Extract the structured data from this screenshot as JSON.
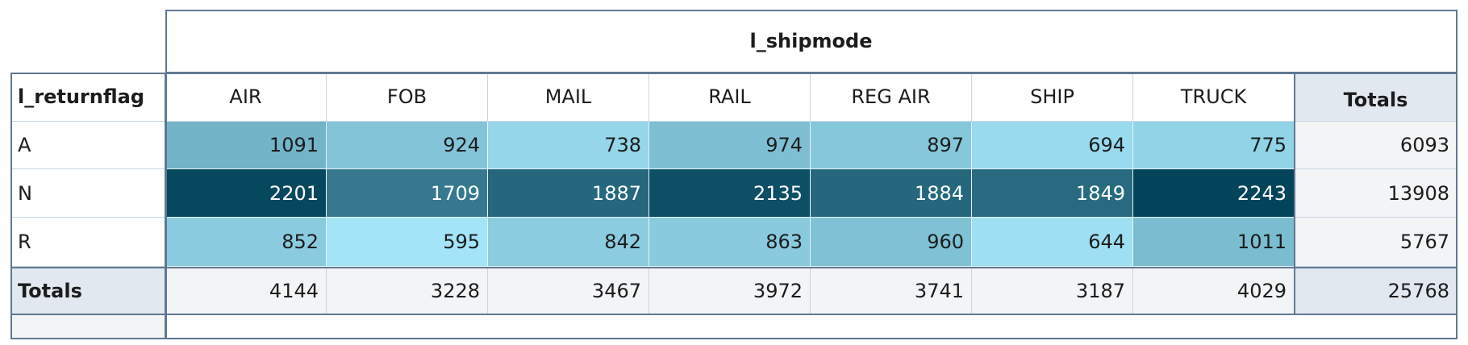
{
  "table": {
    "column_dimension": "l_shipmode",
    "row_dimension": "l_returnflag",
    "columns": [
      "AIR",
      "FOB",
      "MAIL",
      "RAIL",
      "REG AIR",
      "SHIP",
      "TRUCK"
    ],
    "totals_column_label": "Totals",
    "totals_row_label": "Totals",
    "rows": [
      {
        "label": "A",
        "values": [
          1091,
          924,
          738,
          974,
          897,
          694,
          775
        ],
        "total": 6093
      },
      {
        "label": "N",
        "values": [
          2201,
          1709,
          1887,
          2135,
          1884,
          1849,
          2243
        ],
        "total": 13908
      },
      {
        "label": "R",
        "values": [
          852,
          595,
          842,
          863,
          960,
          644,
          1011
        ],
        "total": 5767
      }
    ],
    "column_totals": [
      4144,
      3228,
      3467,
      3972,
      3741,
      3187,
      4029
    ],
    "grand_total": 25768,
    "heat_colors": [
      "#a3e4f8",
      "#02455b"
    ]
  }
}
